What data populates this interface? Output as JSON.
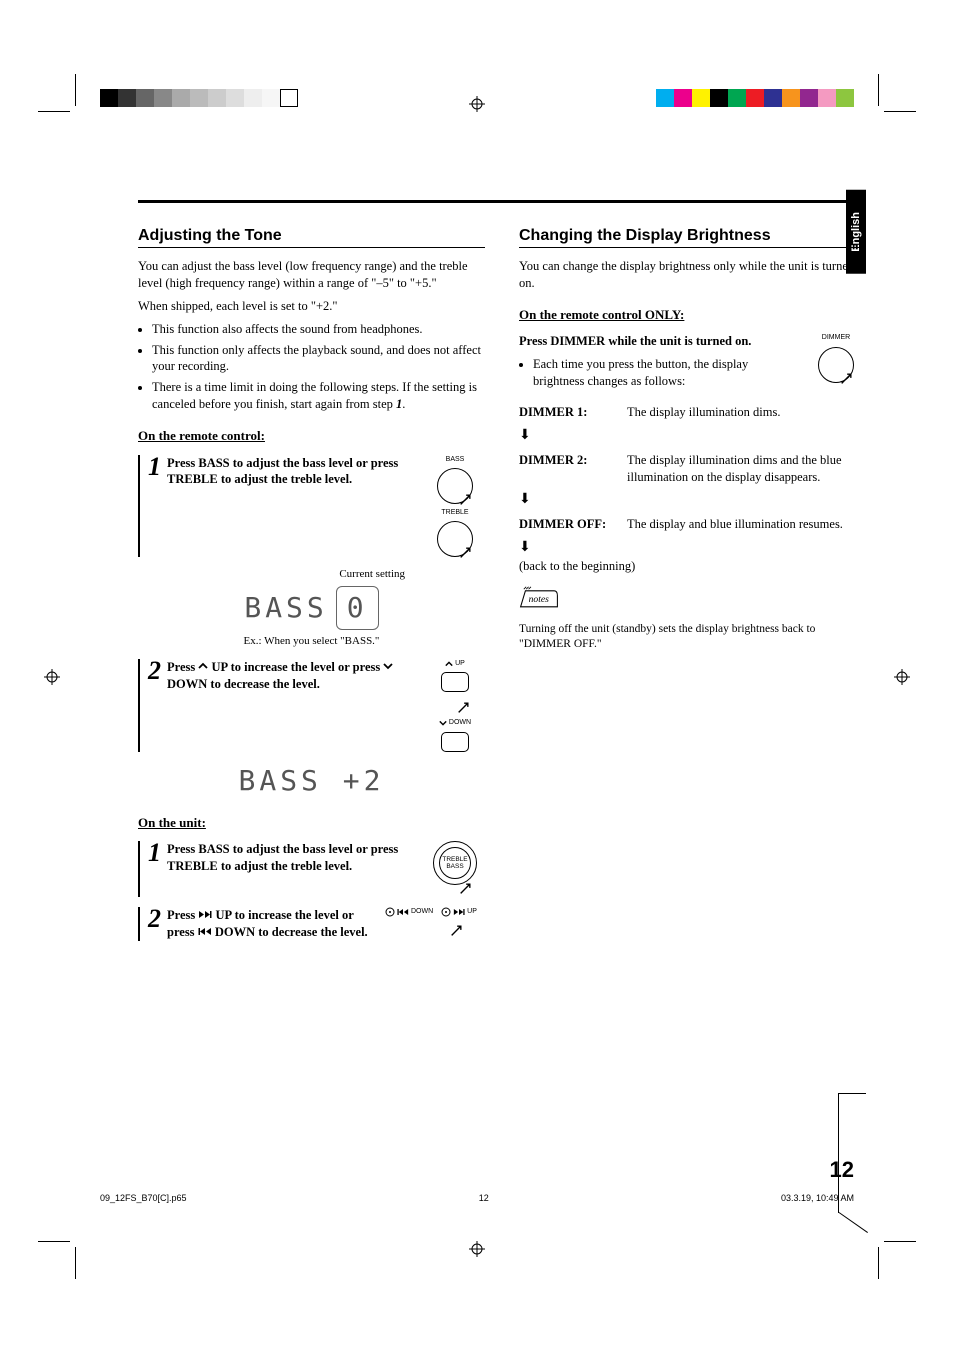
{
  "language_tab": "English",
  "page_number": "12",
  "footer": {
    "filename": "09_12FS_B70[C].p65",
    "page": "12",
    "timestamp": "03.3.19, 10:49 AM"
  },
  "colorbar_left": [
    "#000000",
    "#333333",
    "#666666",
    "#888888",
    "#aaaaaa",
    "#bbbbbb",
    "#cccccc",
    "#dddddd",
    "#eeeeee",
    "#f6f6f6",
    "#ffffff"
  ],
  "colorbar_right": [
    "#00aeef",
    "#ec008c",
    "#fff200",
    "#000000",
    "#00a651",
    "#ed1c24",
    "#2e3192",
    "#f7941d",
    "#92278f",
    "#f49ac1",
    "#8dc63f"
  ],
  "left": {
    "title": "Adjusting the Tone",
    "intro1": "You can adjust the bass level (low frequency range) and the treble level (high frequency range) within a range of \"–5\" to \"+5.\"",
    "intro2": "When shipped, each level is set to \"+2.\"",
    "bullets": [
      "This function also affects the sound from headphones.",
      "This function only affects the playback sound, and does not affect your recording.",
      "There is a time limit in doing the following steps. If the setting is canceled before you finish, start again from step"
    ],
    "bullet3_suffix": "1",
    "remote_hdr": "On the remote control:",
    "step1": "Press BASS to adjust the bass level or press TREBLE to adjust the treble level.",
    "btn_bass": "BASS",
    "btn_treble": "TREBLE",
    "leader": "Current setting",
    "seg1": "BASS",
    "seg1_val": "0",
    "cap1": "Ex.: When you select \"BASS.\"",
    "step2_a": "Press ",
    "step2_b": " UP to increase the level or press ",
    "step2_c": " DOWN to decrease the level.",
    "btn_up": "UP",
    "btn_down": "DOWN",
    "seg2": "BASS  +2",
    "unit_hdr": "On the unit:",
    "u_step1": "Press BASS to adjust the bass level or press TREBLE to adjust the treble level.",
    "u_ring_top": "TREBLE",
    "u_ring_bot": "BASS",
    "u_step2_a": "Press ",
    "u_step2_b": " UP to increase the level or press ",
    "u_step2_c": " DOWN to decrease the level.",
    "u_down": "DOWN",
    "u_up": "UP"
  },
  "right": {
    "title": "Changing the Display Brightness",
    "intro": "You can change the display brightness only while the unit is turned on.",
    "remote_hdr": "On the remote control ONLY:",
    "line1": "Press DIMMER while the unit is turned on.",
    "bullet": "Each time you press the button, the display brightness changes as follows:",
    "btn_dimmer": "DIMMER",
    "rows": [
      {
        "k": "DIMMER 1:",
        "v": "The display illumination dims."
      },
      {
        "k": "DIMMER 2:",
        "v": "The display illumination dims and the blue illumination on the display disappears."
      },
      {
        "k": "DIMMER OFF:",
        "v": "The display and blue illumination resumes."
      }
    ],
    "back": "(back to the beginning)",
    "note": "Turning off the unit (standby) sets the display brightness back to \"DIMMER OFF.\""
  }
}
